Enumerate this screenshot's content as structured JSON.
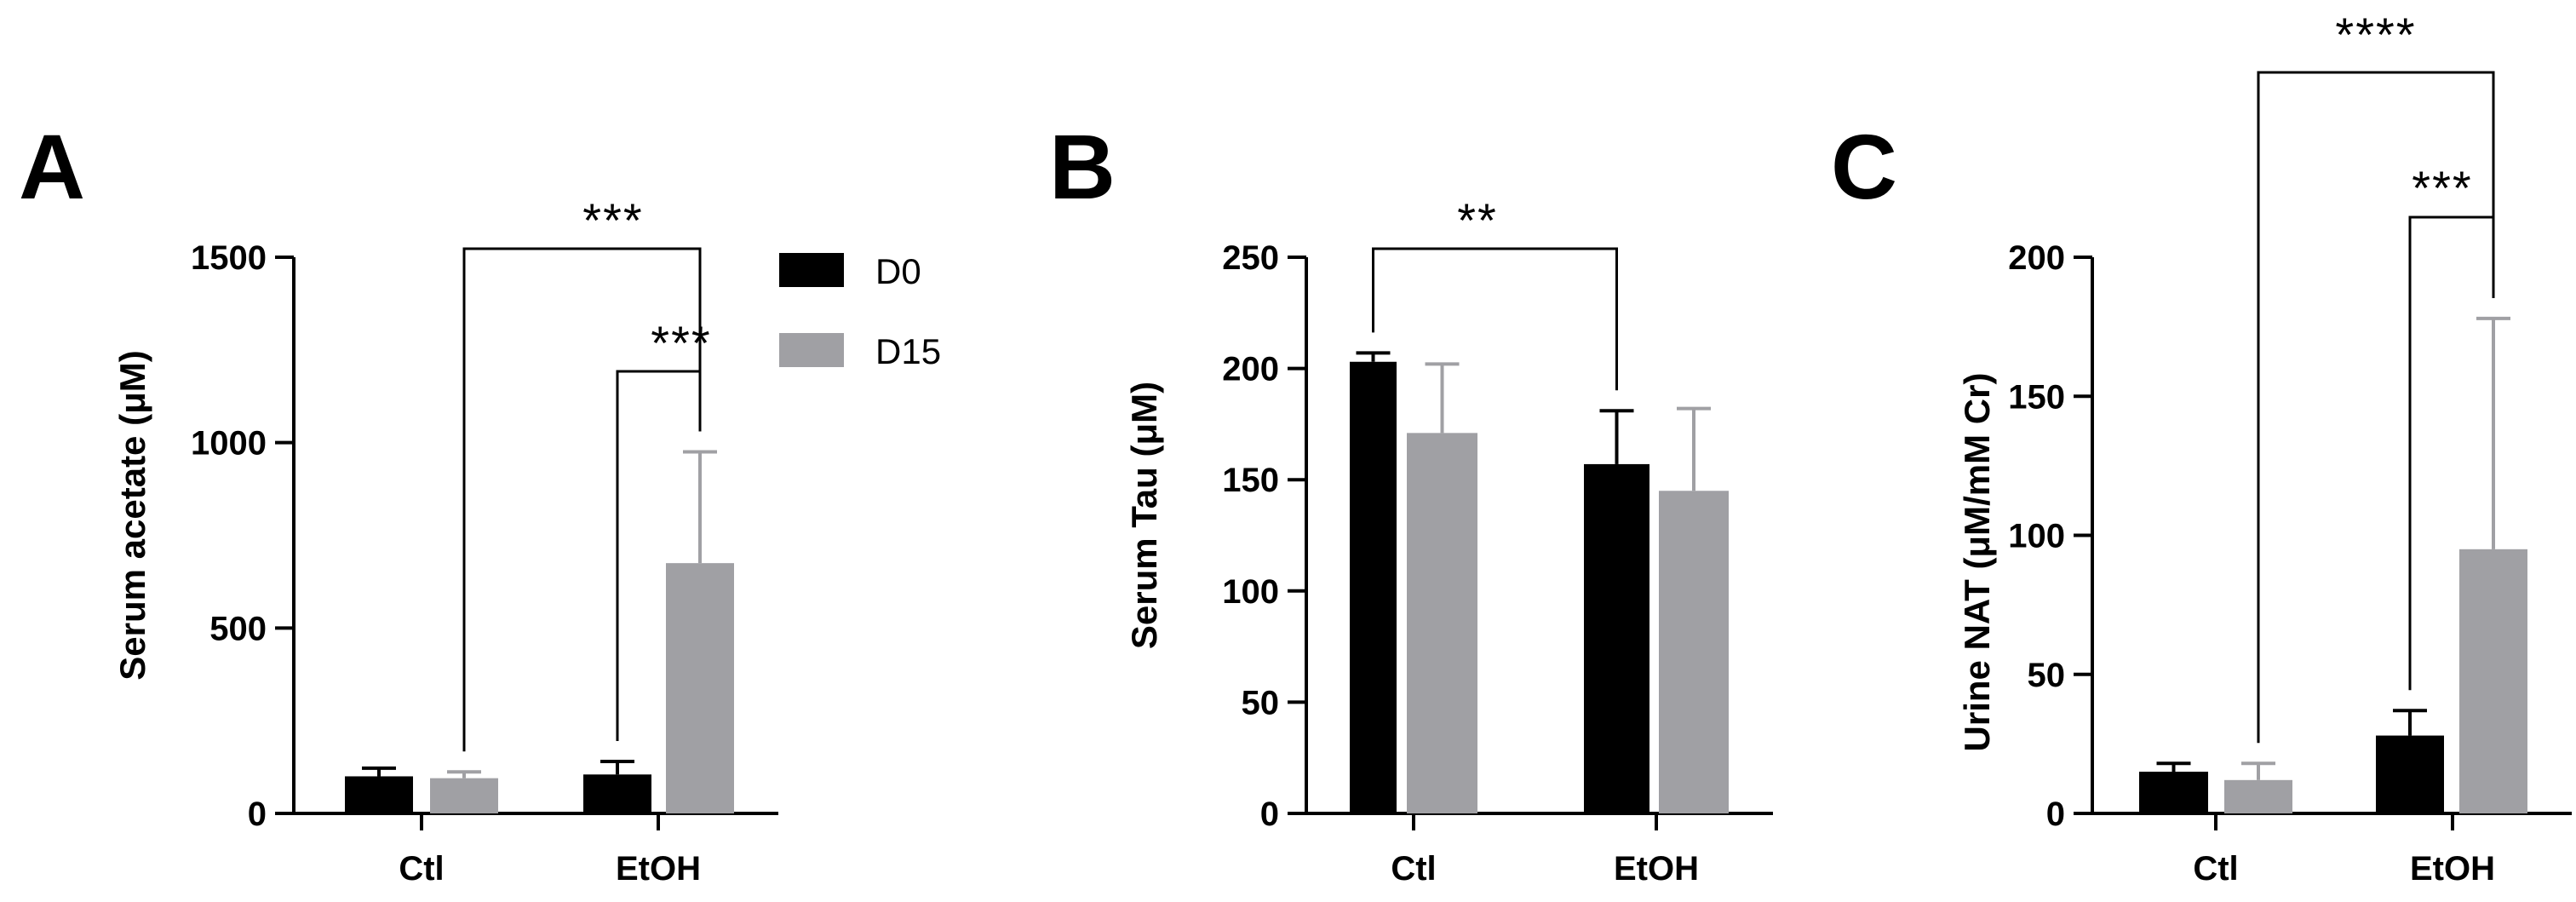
{
  "colors": {
    "D0": "#000000",
    "D15": "#a0a0a4",
    "axis": "#000000"
  },
  "legend": [
    {
      "name": "D0",
      "color": "#000000"
    },
    {
      "name": "D15",
      "color": "#a0a0a4"
    }
  ],
  "chart_data": [
    {
      "panel": "A",
      "type": "bar",
      "ylabel": "Serum acetate (μM)",
      "ylim": [
        0,
        1500
      ],
      "yticks": [
        0,
        500,
        1000,
        1500
      ],
      "categories": [
        "Ctl",
        "EtOH"
      ],
      "series": [
        {
          "name": "D0",
          "values": [
            100,
            105
          ],
          "errors": [
            22,
            35
          ]
        },
        {
          "name": "D15",
          "values": [
            95,
            675
          ],
          "errors": [
            17,
            300
          ]
        }
      ],
      "significance": [
        {
          "from": [
            0,
            1
          ],
          "to": [
            1,
            1
          ],
          "label": "***"
        },
        {
          "from": [
            1,
            0
          ],
          "to": [
            1,
            1
          ],
          "label": "***"
        }
      ],
      "grid": false,
      "legend": "right"
    },
    {
      "panel": "B",
      "type": "bar",
      "ylabel": "Serum Tau (μM)",
      "ylim": [
        0,
        250
      ],
      "yticks": [
        0,
        50,
        100,
        150,
        200,
        250
      ],
      "categories": [
        "Ctl",
        "EtOH"
      ],
      "series": [
        {
          "name": "D0",
          "values": [
            203,
            157
          ],
          "errors": [
            4,
            24
          ]
        },
        {
          "name": "D15",
          "values": [
            171,
            145
          ],
          "errors": [
            31,
            37
          ]
        }
      ],
      "significance": [
        {
          "from": [
            0,
            0
          ],
          "to": [
            1,
            0
          ],
          "label": "**"
        }
      ],
      "grid": false
    },
    {
      "panel": "C",
      "type": "bar",
      "ylabel": "Urine NAT (μM/mM Cr)",
      "ylim": [
        0,
        200
      ],
      "yticks": [
        0,
        50,
        100,
        150,
        200
      ],
      "categories": [
        "Ctl",
        "EtOH"
      ],
      "series": [
        {
          "name": "D0",
          "values": [
            15,
            28
          ],
          "errors": [
            3,
            9
          ]
        },
        {
          "name": "D15",
          "values": [
            12,
            95
          ],
          "errors": [
            6,
            83
          ]
        }
      ],
      "significance": [
        {
          "from": [
            0,
            1
          ],
          "to": [
            1,
            1
          ],
          "label": "****"
        },
        {
          "from": [
            1,
            0
          ],
          "to": [
            1,
            1
          ],
          "label": "***"
        }
      ],
      "grid": false
    }
  ]
}
